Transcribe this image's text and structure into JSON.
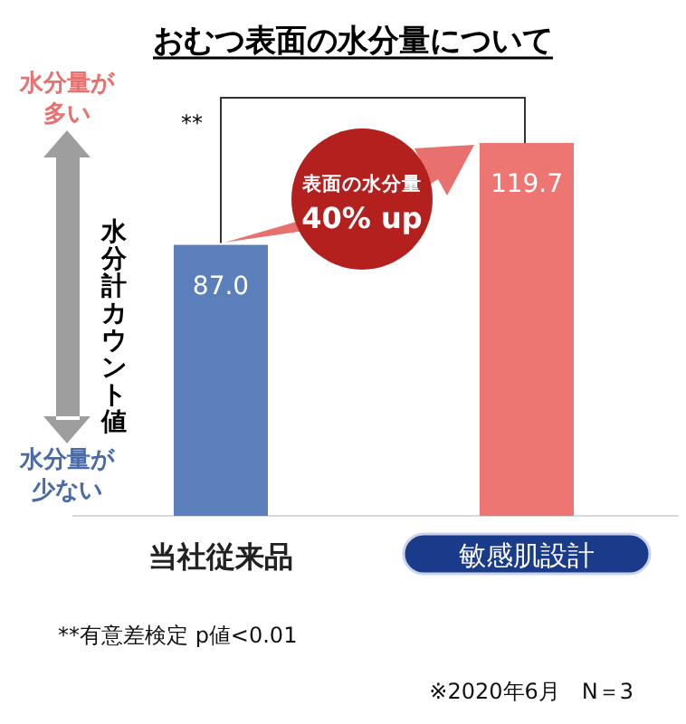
{
  "chart_data": {
    "type": "bar",
    "title": "おむつ表面の水分量について",
    "ylabel": "水分計カウント値",
    "categories": [
      "当社従来品",
      "敏感肌設計"
    ],
    "values": [
      87.0,
      119.7
    ],
    "value_labels": [
      "87.0",
      "119.7"
    ],
    "colors": [
      "#5b7fbb",
      "#ee7672"
    ],
    "annotations": [
      "水分量が多い",
      "水分量が少ない",
      "**",
      "表面の水分量",
      "40% up",
      "**有意差検定 p値<0.01",
      "※2020年6月　N＝3"
    ]
  }
}
